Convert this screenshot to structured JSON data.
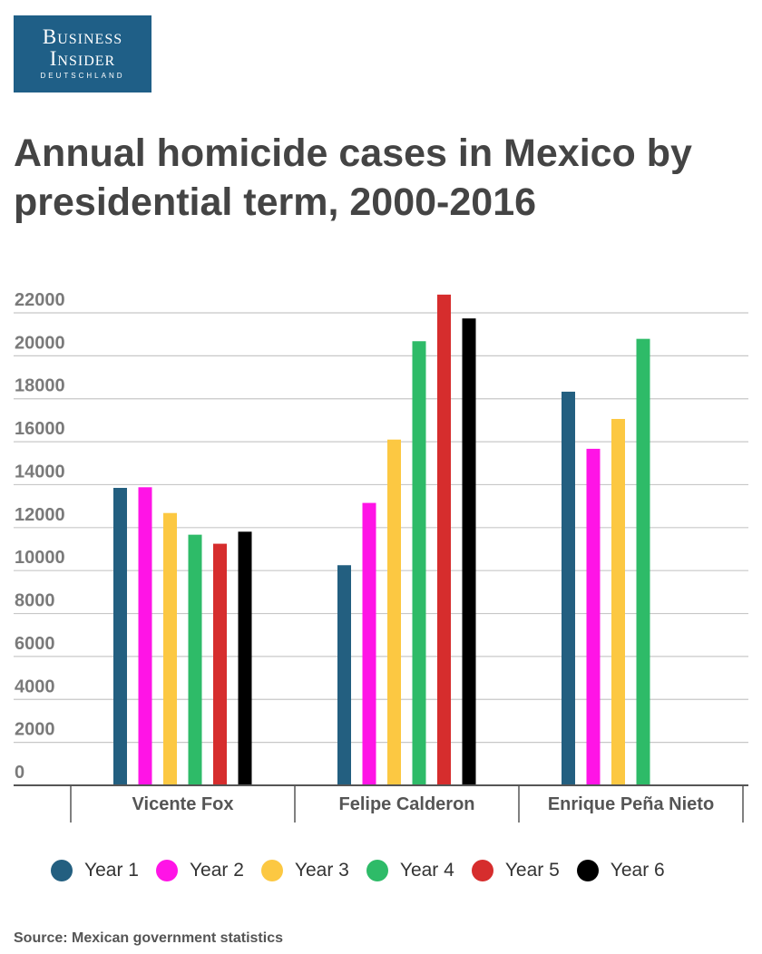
{
  "logo": {
    "line1": "Business",
    "line2": "Insider",
    "line3": "DEUTSCHLAND"
  },
  "title": "Annual homicide cases in Mexico by presidential term, 2000-2016",
  "source": "Source: Mexican government statistics",
  "chart_data": {
    "type": "bar",
    "categories": [
      "Vicente Fox",
      "Felipe Calderon",
      "Enrique Peña Nieto"
    ],
    "series": [
      {
        "name": "Year 1",
        "color": "#235f80",
        "values": [
          13850,
          10250,
          18330
        ]
      },
      {
        "name": "Year 2",
        "color": "#ff14e6",
        "values": [
          13880,
          13150,
          15670
        ]
      },
      {
        "name": "Year 3",
        "color": "#fcc842",
        "values": [
          12680,
          16100,
          17060
        ]
      },
      {
        "name": "Year 4",
        "color": "#2ebb68",
        "values": [
          11670,
          20680,
          20790
        ]
      },
      {
        "name": "Year 5",
        "color": "#d62d2d",
        "values": [
          11250,
          22850,
          null
        ]
      },
      {
        "name": "Year 6",
        "color": "#000000",
        "values": [
          11810,
          21740,
          null
        ]
      }
    ],
    "yticks": [
      0,
      2000,
      4000,
      6000,
      8000,
      10000,
      12000,
      14000,
      16000,
      18000,
      20000,
      22000
    ],
    "ylim": [
      0,
      22000
    ],
    "grid": true,
    "legend_position": "bottom"
  }
}
